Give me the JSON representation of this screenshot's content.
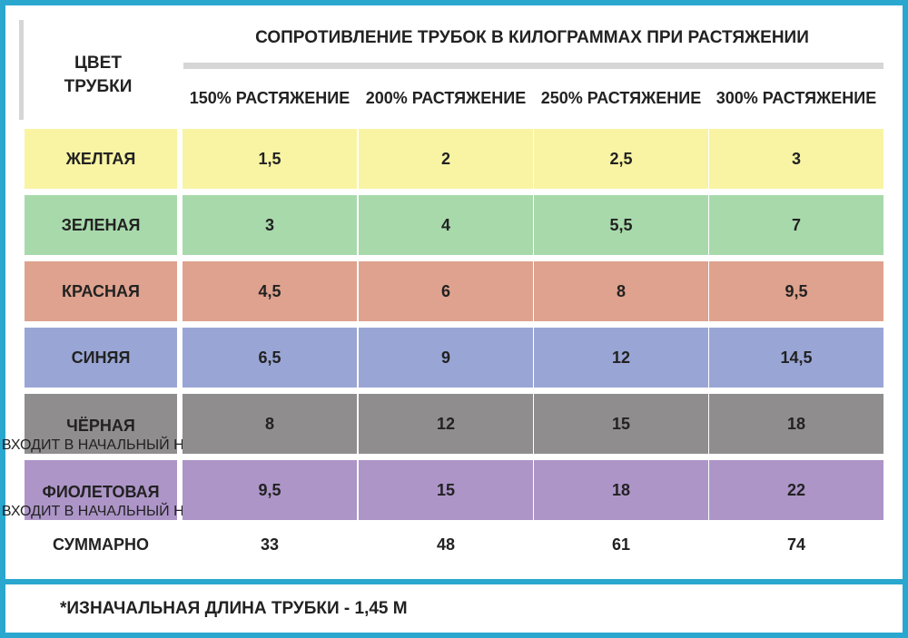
{
  "header": {
    "color_label_line1": "ЦВЕТ",
    "color_label_line2": "ТРУБКИ",
    "title": "СОПРОТИВЛЕНИЕ ТРУБОК В КИЛОГРАММАХ ПРИ РАСТЯЖЕНИИ",
    "columns": [
      "150% РАСТЯЖЕНИЕ",
      "200% РАСТЯЖЕНИЕ",
      "250% РАСТЯЖЕНИЕ",
      "300% РАСТЯЖЕНИЕ"
    ]
  },
  "rows": [
    {
      "name": "ЖЕЛТАЯ",
      "note": "",
      "color": "#f9f4a3",
      "values": [
        "1,5",
        "2",
        "2,5",
        "3"
      ]
    },
    {
      "name": "ЗЕЛЕНАЯ",
      "note": "",
      "color": "#a8d9ab",
      "values": [
        "3",
        "4",
        "5,5",
        "7"
      ]
    },
    {
      "name": "КРАСНАЯ",
      "note": "",
      "color": "#dea28e",
      "values": [
        "4,5",
        "6",
        "8",
        "9,5"
      ]
    },
    {
      "name": "СИНЯЯ",
      "note": "",
      "color": "#99a6d5",
      "values": [
        "6,5",
        "9",
        "12",
        "14,5"
      ]
    },
    {
      "name": "ЧЁРНАЯ",
      "note": "(НЕ ВХОДИТ В НАЧАЛЬНЫЙ НАБОР)",
      "color": "#8f8d8d",
      "values": [
        "8",
        "12",
        "15",
        "18"
      ]
    },
    {
      "name": "ФИОЛЕТОВАЯ",
      "note": "(НЕ ВХОДИТ В НАЧАЛЬНЫЙ НАБОР)",
      "color": "#ad95c8",
      "values": [
        "9,5",
        "15",
        "18",
        "22"
      ]
    }
  ],
  "totals": {
    "label": "СУММАРНО",
    "values": [
      "33",
      "48",
      "61",
      "74"
    ]
  },
  "footnote": "*ИЗНАЧАЛЬНАЯ ДЛИНА ТРУБКИ - 1,45 М"
}
